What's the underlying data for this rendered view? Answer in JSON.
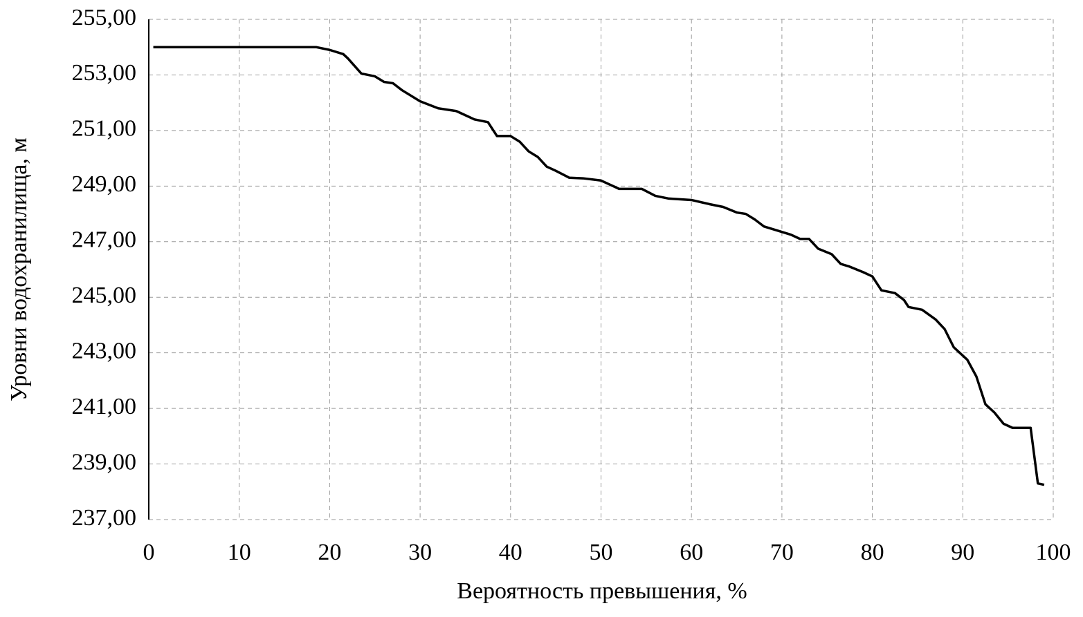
{
  "chart_data": {
    "type": "line",
    "x_label": "Вероятность превышения, %",
    "y_label": "Уровни водохранилища, м",
    "xlim": [
      0,
      100
    ],
    "xticks": [
      0,
      10,
      20,
      30,
      40,
      50,
      60,
      70,
      80,
      90,
      100
    ],
    "ylim": [
      237,
      255
    ],
    "yticks": [
      {
        "value": 237,
        "label": "237,00"
      },
      {
        "value": 239,
        "label": "239,00"
      },
      {
        "value": 241,
        "label": "241,00"
      },
      {
        "value": 243,
        "label": "243,00"
      },
      {
        "value": 245,
        "label": "245,00"
      },
      {
        "value": 247,
        "label": "247,00"
      },
      {
        "value": 249,
        "label": "249,00"
      },
      {
        "value": 251,
        "label": "251,00"
      },
      {
        "value": 253,
        "label": "253,00"
      },
      {
        "value": 255,
        "label": "255,00"
      }
    ],
    "grid": true,
    "series": [
      {
        "color": "#000000",
        "x": [
          0.5,
          5,
          10,
          15,
          18.5,
          20,
          21.5,
          22,
          23.5,
          25,
          26,
          27,
          28,
          30,
          32,
          34,
          35,
          36,
          37.5,
          38.5,
          40,
          41,
          42,
          43,
          44,
          45,
          46.5,
          48,
          50,
          51,
          52,
          54.5,
          56,
          57.5,
          60,
          62,
          63.5,
          65,
          66,
          67,
          68,
          70,
          71,
          72,
          73,
          74,
          75.5,
          76.5,
          77.5,
          79,
          80,
          81,
          82.5,
          83.5,
          84,
          85.5,
          87,
          88,
          89,
          90.5,
          91.5,
          92.5,
          93.5,
          94.5,
          95.5,
          97.5,
          98.3,
          99
        ],
        "values": [
          254,
          254,
          254,
          254,
          254,
          253.9,
          253.75,
          253.6,
          253.05,
          252.95,
          252.75,
          252.7,
          252.45,
          252.05,
          251.8,
          251.7,
          251.55,
          251.4,
          251.3,
          250.8,
          250.8,
          250.6,
          250.25,
          250.05,
          249.7,
          249.55,
          249.3,
          249.28,
          249.2,
          249.05,
          248.9,
          248.9,
          248.65,
          248.55,
          248.5,
          248.35,
          248.25,
          248.05,
          248,
          247.8,
          247.55,
          247.35,
          247.25,
          247.1,
          247.1,
          246.75,
          246.55,
          246.2,
          246.1,
          245.9,
          245.75,
          245.25,
          245.15,
          244.9,
          244.65,
          244.55,
          244.2,
          243.85,
          243.2,
          242.75,
          242.15,
          241.15,
          240.85,
          240.45,
          240.3,
          240.3,
          238.3,
          238.25
        ]
      }
    ]
  }
}
